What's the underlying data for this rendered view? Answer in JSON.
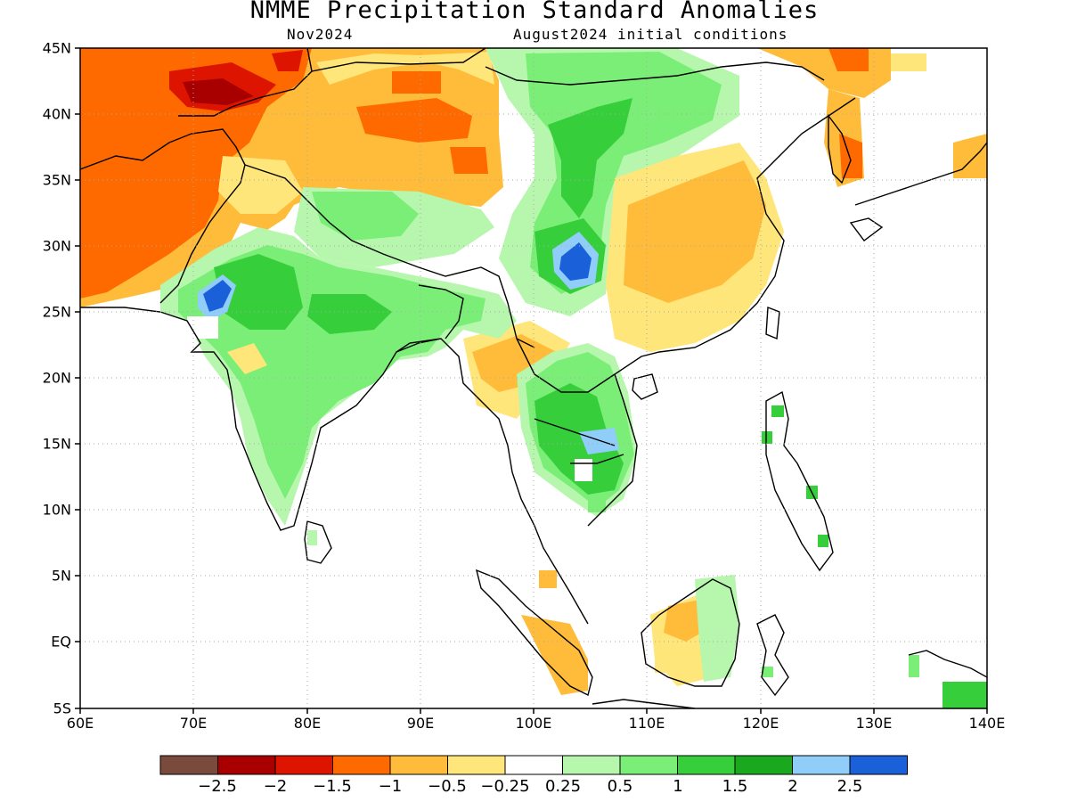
{
  "title": "NMME Precipitation Standard Anomalies",
  "forecast_month": "Nov2024",
  "init_label": "August2024 initial conditions",
  "lat_labels": [
    "45N",
    "40N",
    "35N",
    "30N",
    "25N",
    "20N",
    "15N",
    "10N",
    "5N",
    "EQ",
    "5S"
  ],
  "lon_labels": [
    "60E",
    "70E",
    "80E",
    "90E",
    "100E",
    "110E",
    "120E",
    "130E",
    "140E"
  ],
  "colorbar": {
    "colors": [
      "#7a4a3d",
      "#a80000",
      "#dd1500",
      "#ff6a00",
      "#ffbb3a",
      "#ffe67a",
      "#ffffff",
      "#b6f7ad",
      "#7aee77",
      "#36cf3b",
      "#1aa81f",
      "#90cdf9",
      "#1a61d9"
    ],
    "labels": [
      "−2.5",
      "−2",
      "−1.5",
      "−1",
      "−0.5",
      "−0.25",
      "0.25",
      "0.5",
      "1",
      "1.5",
      "2",
      "2.5"
    ]
  }
}
